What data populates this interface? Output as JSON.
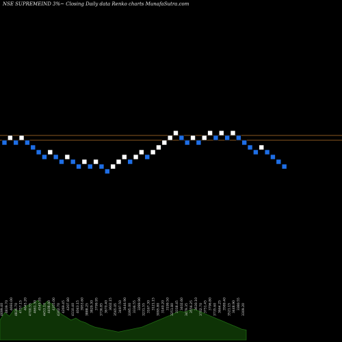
{
  "title": "NSE SUPREMEIND 3%~  Closing Daily data  Renko  charts MunafaSutra.com",
  "colors": {
    "background": "#000000",
    "up_brick": "#ffffff",
    "down_brick": "#1e6ee6",
    "hline": "#b8762a",
    "volume_fill": "#0e3306",
    "volume_stroke": "#1f6a12",
    "volume_label": "#d8d8d8"
  },
  "chart_data": {
    "type": "renko",
    "brick_size_pct": 3,
    "bricks": [
      {
        "dir": "down",
        "level": 0
      },
      {
        "dir": "up",
        "level": 1
      },
      {
        "dir": "down",
        "level": 0
      },
      {
        "dir": "up",
        "level": 1
      },
      {
        "dir": "down",
        "level": 0
      },
      {
        "dir": "down",
        "level": -1
      },
      {
        "dir": "down",
        "level": -2
      },
      {
        "dir": "down",
        "level": -3
      },
      {
        "dir": "up",
        "level": -2
      },
      {
        "dir": "down",
        "level": -3
      },
      {
        "dir": "down",
        "level": -4
      },
      {
        "dir": "up",
        "level": -3
      },
      {
        "dir": "down",
        "level": -4
      },
      {
        "dir": "down",
        "level": -5
      },
      {
        "dir": "up",
        "level": -4
      },
      {
        "dir": "down",
        "level": -5
      },
      {
        "dir": "up",
        "level": -4
      },
      {
        "dir": "down",
        "level": -5
      },
      {
        "dir": "down",
        "level": -6
      },
      {
        "dir": "up",
        "level": -5
      },
      {
        "dir": "up",
        "level": -4
      },
      {
        "dir": "up",
        "level": -3
      },
      {
        "dir": "down",
        "level": -4
      },
      {
        "dir": "up",
        "level": -3
      },
      {
        "dir": "up",
        "level": -2
      },
      {
        "dir": "down",
        "level": -3
      },
      {
        "dir": "up",
        "level": -2
      },
      {
        "dir": "up",
        "level": -1
      },
      {
        "dir": "up",
        "level": 0
      },
      {
        "dir": "up",
        "level": 1
      },
      {
        "dir": "up",
        "level": 2
      },
      {
        "dir": "down",
        "level": 1
      },
      {
        "dir": "down",
        "level": 0
      },
      {
        "dir": "up",
        "level": 1
      },
      {
        "dir": "down",
        "level": 0
      },
      {
        "dir": "up",
        "level": 1
      },
      {
        "dir": "up",
        "level": 2
      },
      {
        "dir": "down",
        "level": 1
      },
      {
        "dir": "up",
        "level": 2
      },
      {
        "dir": "down",
        "level": 1
      },
      {
        "dir": "up",
        "level": 2
      },
      {
        "dir": "down",
        "level": 1
      },
      {
        "dir": "down",
        "level": 0
      },
      {
        "dir": "down",
        "level": -1
      },
      {
        "dir": "down",
        "level": -2
      },
      {
        "dir": "up",
        "level": -1
      },
      {
        "dir": "down",
        "level": -2
      },
      {
        "dir": "down",
        "level": -3
      },
      {
        "dir": "down",
        "level": -4
      },
      {
        "dir": "down",
        "level": -5
      }
    ],
    "reference_lines": [
      1.5,
      0.5
    ],
    "volume": [
      40,
      55,
      48,
      62,
      58,
      66,
      70,
      74,
      80,
      68,
      78,
      72,
      60,
      52,
      46,
      40,
      44,
      38,
      35,
      30,
      26,
      24,
      22,
      20,
      18,
      16,
      18,
      20,
      22,
      24,
      26,
      30,
      34,
      38,
      42,
      46,
      50,
      54,
      58,
      56,
      60,
      62,
      58,
      54,
      50,
      46,
      42,
      38,
      34,
      30,
      26,
      22,
      20
    ],
    "price_labels": [
      "4699.40",
      "4839.70",
      "4693.00",
      "4836.70",
      "4757.15",
      "4645.20",
      "4700.55",
      "4661.30",
      "4545.55",
      "4453.10",
      "4408.60",
      "4355.00",
      "4302.70",
      "4269.45",
      "4207.80",
      "4110.40",
      "4043.15",
      "3953.60",
      "3888.25",
      "3829.30",
      "3799.95",
      "3736.85",
      "3670.40",
      "3602.15",
      "3565.05",
      "3497.50",
      "3446.90",
      "3395.00",
      "3336.55",
      "3289.90",
      "3231.55",
      "3167.30",
      "3121.15",
      "3095.80",
      "3140.20",
      "3199.50",
      "3251.80",
      "3318.45",
      "3402.60",
      "3479.35",
      "3556.25",
      "3630.10",
      "3702.70",
      "3751.45",
      "3796.80",
      "3735.60",
      "3664.25",
      "3589.40",
      "3521.15",
      "3448.90",
      "3380.55",
      "3309.20"
    ]
  }
}
